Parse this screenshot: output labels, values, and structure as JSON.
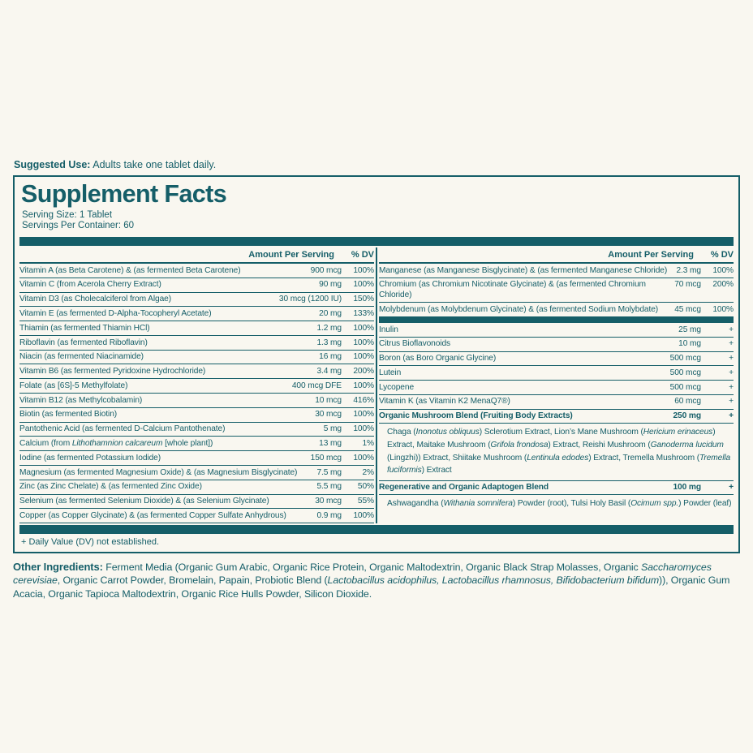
{
  "colors": {
    "teal": "#155e68",
    "background": "#f9f7f0"
  },
  "suggested_use": {
    "label": "Suggested Use:",
    "text": " Adults take one tablet daily."
  },
  "panel": {
    "title": "Supplement Facts",
    "serving_size": "Serving Size: 1 Tablet",
    "servings_per_container": "Servings Per Container: 60",
    "col_header": {
      "amount": "Amount Per Serving",
      "dv": "% DV"
    },
    "left_rows": [
      {
        "name": "Vitamin A (as Beta Carotene) & (as fermented Beta Carotene)",
        "amount": "900 mcg",
        "dv": "100%"
      },
      {
        "name": "Vitamin C (from Acerola Cherry Extract)",
        "amount": "90 mg",
        "dv": "100%"
      },
      {
        "name": "Vitamin D3 (as Cholecalciferol from Algae)",
        "amount": "30 mcg (1200 IU)",
        "dv": "150%"
      },
      {
        "name": "Vitamin E (as fermented D-Alpha-Tocopheryl Acetate)",
        "amount": "20 mg",
        "dv": "133%"
      },
      {
        "name": "Thiamin (as fermented Thiamin HCl)",
        "amount": "1.2 mg",
        "dv": "100%"
      },
      {
        "name": "Riboflavin (as fermented Riboflavin)",
        "amount": "1.3 mg",
        "dv": "100%"
      },
      {
        "name": "Niacin (as fermented Niacinamide)",
        "amount": "16 mg",
        "dv": "100%"
      },
      {
        "name": "Vitamin B6 (as fermented Pyridoxine Hydrochloride)",
        "amount": "3.4 mg",
        "dv": "200%"
      },
      {
        "name": "Folate (as [6S]-5 Methylfolate)",
        "amount": "400 mcg DFE",
        "dv": "100%"
      },
      {
        "name": "Vitamin B12 (as Methylcobalamin)",
        "amount": "10 mcg",
        "dv": "416%"
      },
      {
        "name": "Biotin (as fermented Biotin)",
        "amount": "30 mcg",
        "dv": "100%"
      },
      {
        "name": "Pantothenic Acid (as fermented D-Calcium Pantothenate)",
        "amount": "5 mg",
        "dv": "100%"
      },
      {
        "name": "Calcium (from *Lithothamnion calcareum* [whole plant])",
        "amount": "13 mg",
        "dv": "1%"
      },
      {
        "name": "Iodine (as fermented Potassium Iodide)",
        "amount": "150 mcg",
        "dv": "100%"
      },
      {
        "name": "Magnesium (as fermented Magnesium Oxide) & (as Magnesium Bisglycinate)",
        "amount": "7.5 mg",
        "dv": "2%"
      },
      {
        "name": "Zinc (as Zinc Chelate) & (as fermented Zinc Oxide)",
        "amount": "5.5 mg",
        "dv": "50%"
      },
      {
        "name": "Selenium (as fermented Selenium Dioxide) & (as Selenium Glycinate)",
        "amount": "30 mcg",
        "dv": "55%"
      },
      {
        "name": "Copper (as Copper Glycinate) & (as fermented Copper Sulfate Anhydrous)",
        "amount": "0.9 mg",
        "dv": "100%"
      }
    ],
    "right_minerals": [
      {
        "name": "Manganese (as Manganese Bisglycinate) & (as fermented Manganese Chloride)",
        "amount": "2.3 mg",
        "dv": "100%"
      },
      {
        "name": "Chromium (as Chromium Nicotinate Glycinate) & (as fermented Chromium Chloride)",
        "amount": "70 mcg",
        "dv": "200%"
      },
      {
        "name": "Molybdenum (as Molybdenum Glycinate) & (as fermented Sodium Molybdate)",
        "amount": "45 mcg",
        "dv": "100%"
      }
    ],
    "right_others": [
      {
        "name": "Inulin",
        "amount": "25 mg",
        "dv": "+"
      },
      {
        "name": "Citrus Bioflavonoids",
        "amount": "10 mg",
        "dv": "+"
      },
      {
        "name": "Boron (as Boro Organic Glycine)",
        "amount": "500 mcg",
        "dv": "+"
      },
      {
        "name": "Lutein",
        "amount": "500 mcg",
        "dv": "+"
      },
      {
        "name": "Lycopene",
        "amount": "500 mcg",
        "dv": "+"
      },
      {
        "name": "Vitamin K (as Vitamin K2 MenaQ7®)",
        "amount": "60 mcg",
        "dv": "+"
      }
    ],
    "blends": [
      {
        "name": "Organic Mushroom Blend (Fruiting Body Extracts)",
        "amount": "250 mg",
        "dv": "+",
        "description": "Chaga (*Inonotus obliquus*) Sclerotium Extract, Lion’s Mane Mushroom (*Hericium erinaceus*) Extract, Maitake Mushroom (*Grifola frondosa*) Extract, Reishi Mushroom (*Ganoderma lucidum* (Lingzhi)) Extract, Shiitake Mushroom (*Lentinula edodes*) Extract, Tremella Mushroom (*Tremella fuciformis*) Extract"
      },
      {
        "name": "Regenerative and Organic Adaptogen Blend",
        "amount": "100 mg",
        "dv": "+",
        "description": "Ashwagandha (*Withania somnifera*) Powder (root), Tulsi Holy Basil (*Ocimum spp.*) Powder (leaf)"
      }
    ],
    "footnote": "+ Daily Value (DV) not established."
  },
  "other_ingredients": {
    "label": "Other Ingredients:",
    "text": " Ferment Media (Organic Gum Arabic, Organic Rice Protein, Organic Maltodextrin, Organic Black Strap Molasses, Organic *Saccharomyces cerevisiae*, Organic Carrot Powder, Bromelain, Papain, Probiotic Blend (*Lactobacillus acidophilus, Lactobacillus rhamnosus, Bifidobacterium bifidum*)), Organic Gum Acacia, Organic Tapioca Maltodextrin, Organic Rice Hulls Powder, Silicon Dioxide."
  }
}
